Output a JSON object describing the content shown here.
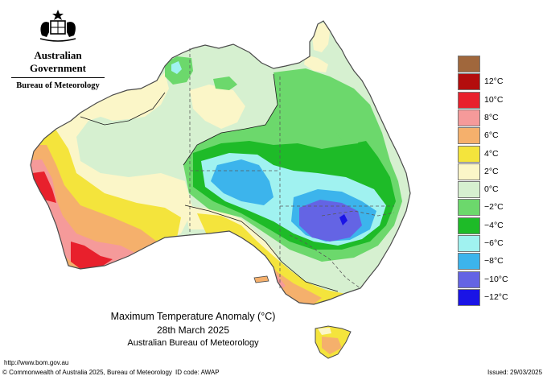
{
  "header": {
    "gov_name": "Australian Government",
    "agency_name": "Bureau of Meteorology",
    "emblem_icon": "coat-of-arms-icon"
  },
  "title": {
    "line1": "Maximum Temperature Anomaly (°C)",
    "line2": "28th March 2025",
    "line3": "Australian Bureau of Meteorology"
  },
  "footer": {
    "website": "http://www.bom.gov.au",
    "copyright": "© Commonwealth of Australia 2025, Bureau of Meteorology",
    "id_code": "ID code: AWAP",
    "issued": "Issued: 29/03/2025"
  },
  "legend": {
    "items": [
      {
        "label": "",
        "color": "#a0673c"
      },
      {
        "label": "12°C",
        "color": "#b30d0d"
      },
      {
        "label": "10°C",
        "color": "#e8202c"
      },
      {
        "label": "8°C",
        "color": "#f59a9a"
      },
      {
        "label": "6°C",
        "color": "#f5b06c"
      },
      {
        "label": "4°C",
        "color": "#f4e43c"
      },
      {
        "label": "2°C",
        "color": "#fbf6c8"
      },
      {
        "label": "0°C",
        "color": "#d6f0d0"
      },
      {
        "label": "−2°C",
        "color": "#6cd86c"
      },
      {
        "label": "−4°C",
        "color": "#1ebb28"
      },
      {
        "label": "−6°C",
        "color": "#a0f2f0"
      },
      {
        "label": "−8°C",
        "color": "#3cb4ec"
      },
      {
        "label": "−10°C",
        "color": "#6464e4"
      },
      {
        "label": "−12°C",
        "color": "#1a14e6"
      }
    ]
  },
  "colors": {
    "land_base": "#d6f0d0",
    "outline": "#4a4a4a",
    "state_border": "#5a5a5a"
  }
}
